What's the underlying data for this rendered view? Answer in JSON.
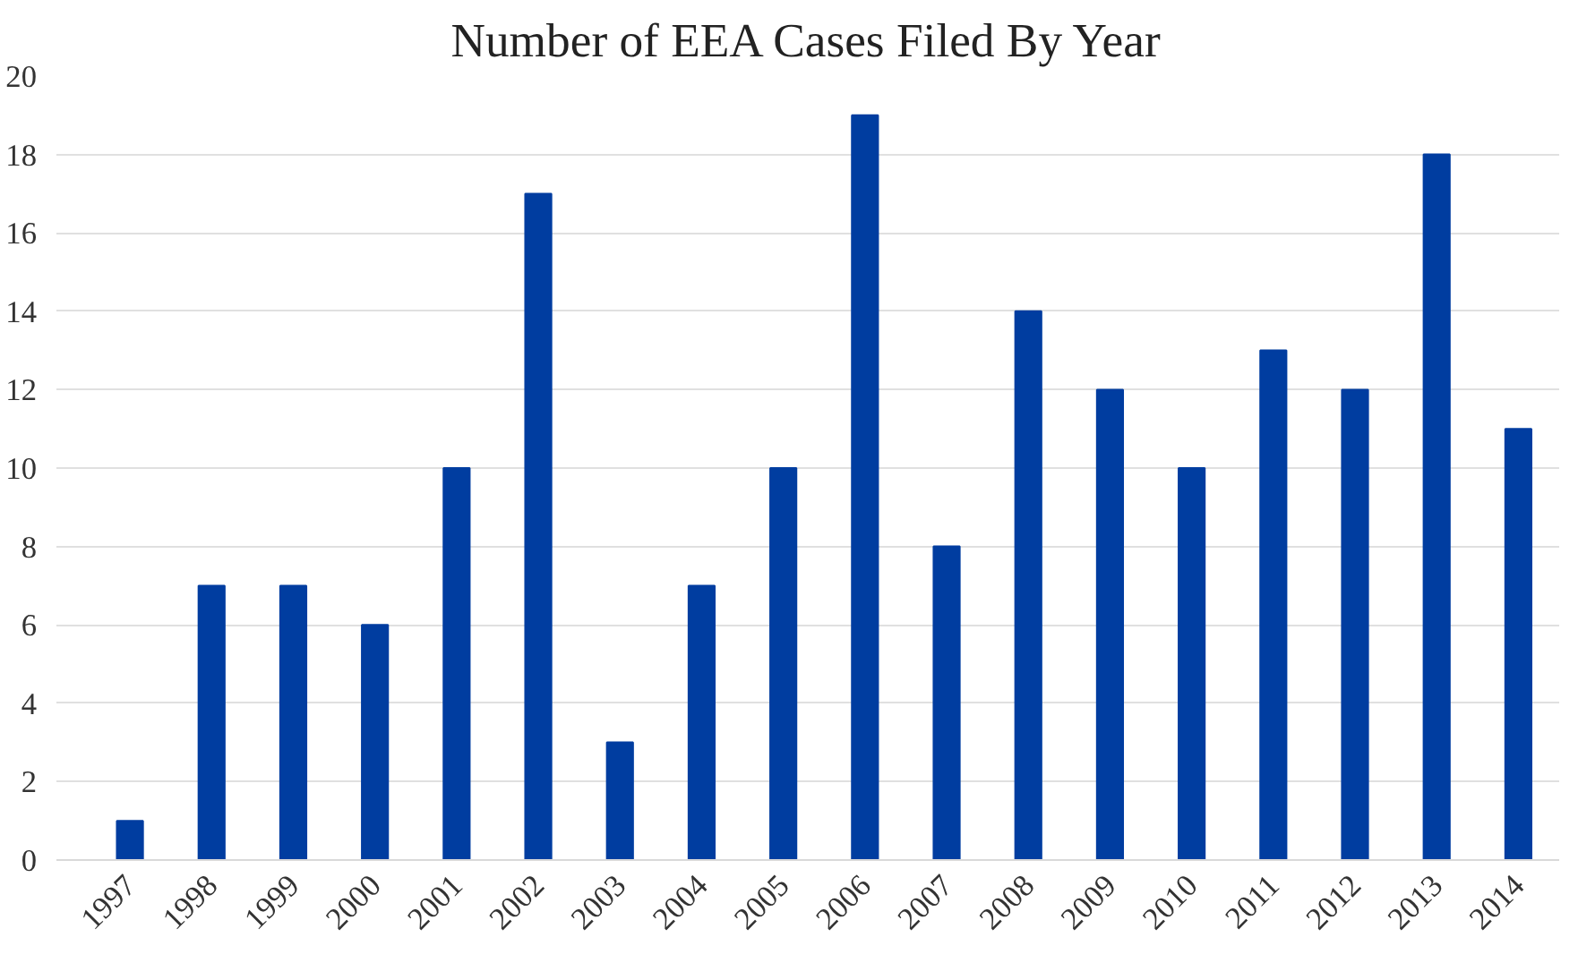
{
  "chart_data": {
    "type": "bar",
    "title": "Number of EEA Cases Filed By Year",
    "categories": [
      "1997",
      "1998",
      "1999",
      "2000",
      "2001",
      "2002",
      "2003",
      "2004",
      "2005",
      "2006",
      "2007",
      "2008",
      "2009",
      "2010",
      "2011",
      "2012",
      "2013",
      "2014"
    ],
    "values": [
      1,
      7,
      7,
      6,
      10,
      17,
      3,
      7,
      10,
      19,
      8,
      14,
      12,
      10,
      13,
      12,
      18,
      11
    ],
    "color": "#003da0",
    "ylim": [
      0,
      20
    ],
    "yticks": [
      0,
      2,
      4,
      6,
      8,
      10,
      12,
      14,
      16,
      18,
      20
    ],
    "grid": "y"
  }
}
